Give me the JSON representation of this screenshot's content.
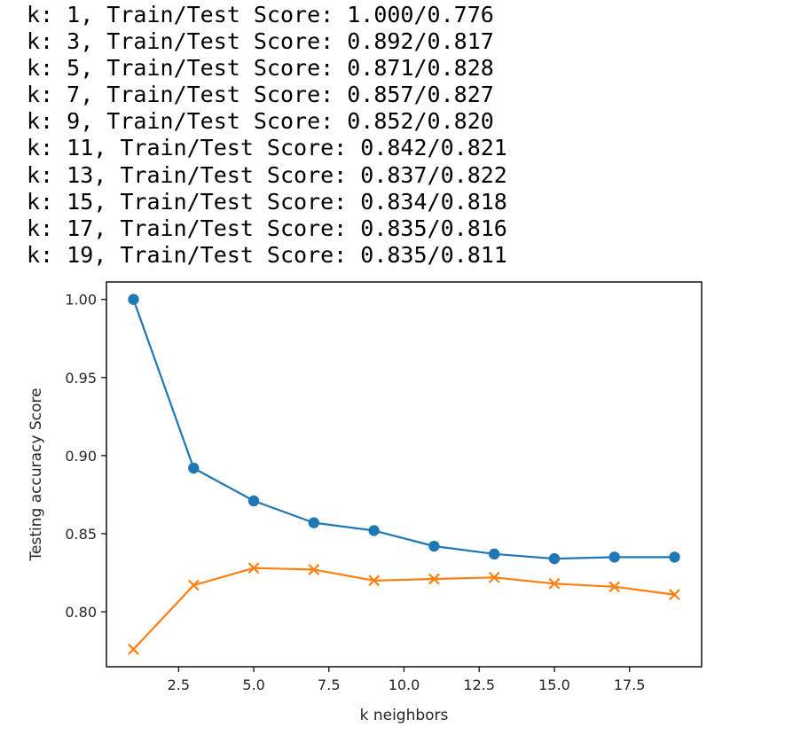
{
  "output_log": [
    "k: 1, Train/Test Score: 1.000/0.776",
    "k: 3, Train/Test Score: 0.892/0.817",
    "k: 5, Train/Test Score: 0.871/0.828",
    "k: 7, Train/Test Score: 0.857/0.827",
    "k: 9, Train/Test Score: 0.852/0.820",
    "k: 11, Train/Test Score: 0.842/0.821",
    "k: 13, Train/Test Score: 0.837/0.822",
    "k: 15, Train/Test Score: 0.834/0.818",
    "k: 17, Train/Test Score: 0.835/0.816",
    "k: 19, Train/Test Score: 0.835/0.811"
  ],
  "chart_data": {
    "type": "line",
    "title": "",
    "xlabel": "k neighbors",
    "ylabel": "Testing accuracy Score",
    "x": [
      1,
      3,
      5,
      7,
      9,
      11,
      13,
      15,
      17,
      19
    ],
    "series": [
      {
        "values": [
          1.0,
          0.892,
          0.871,
          0.857,
          0.852,
          0.842,
          0.837,
          0.834,
          0.835,
          0.835
        ],
        "color": "#1f77b4",
        "marker": "o"
      },
      {
        "values": [
          0.776,
          0.817,
          0.828,
          0.827,
          0.82,
          0.821,
          0.822,
          0.818,
          0.816,
          0.811
        ],
        "color": "#ff7f0e",
        "marker": "x"
      }
    ],
    "xlim": [
      0.1,
      19.9
    ],
    "ylim": [
      0.7648,
      1.0112
    ],
    "xticks": [
      2.5,
      5.0,
      7.5,
      10.0,
      12.5,
      15.0,
      17.5
    ],
    "xtick_labels": [
      "2.5",
      "5.0",
      "7.5",
      "10.0",
      "12.5",
      "15.0",
      "17.5"
    ],
    "yticks": [
      0.8,
      0.85,
      0.9,
      0.95,
      1.0
    ],
    "ytick_labels": [
      "0.80",
      "0.85",
      "0.90",
      "0.95",
      "1.00"
    ],
    "grid": false,
    "legend": "none"
  }
}
